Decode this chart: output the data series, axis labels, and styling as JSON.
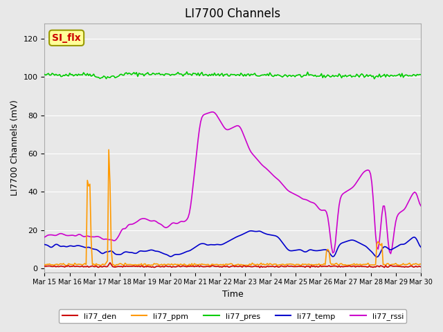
{
  "title": "LI7700 Channels",
  "ylabel": "LI7700 Channels (mV)",
  "xlabel": "Time",
  "ylim": [
    -2,
    128
  ],
  "xlim": [
    0,
    15
  ],
  "background_color": "#e8e8e8",
  "plot_bg_color": "#e8e8e8",
  "annotation_text": "SI_flx",
  "annotation_color": "#cc0000",
  "annotation_bg": "#ffff99",
  "annotation_border": "#999900",
  "x_tick_labels": [
    "Mar 15",
    "Mar 16",
    "Mar 17",
    "Mar 18",
    "Mar 19",
    "Mar 20",
    "Mar 21",
    "Mar 22",
    "Mar 23",
    "Mar 24",
    "Mar 25",
    "Mar 26",
    "Mar 27",
    "Mar 28",
    "Mar 29",
    "Mar 30"
  ],
  "legend_entries": [
    {
      "label": "li77_den",
      "color": "#cc0000"
    },
    {
      "label": "li77_ppm",
      "color": "#ff9900"
    },
    {
      "label": "li77_pres",
      "color": "#00cc00"
    },
    {
      "label": "li77_temp",
      "color": "#0000cc"
    },
    {
      "label": "li77_rssi",
      "color": "#cc00cc"
    }
  ]
}
